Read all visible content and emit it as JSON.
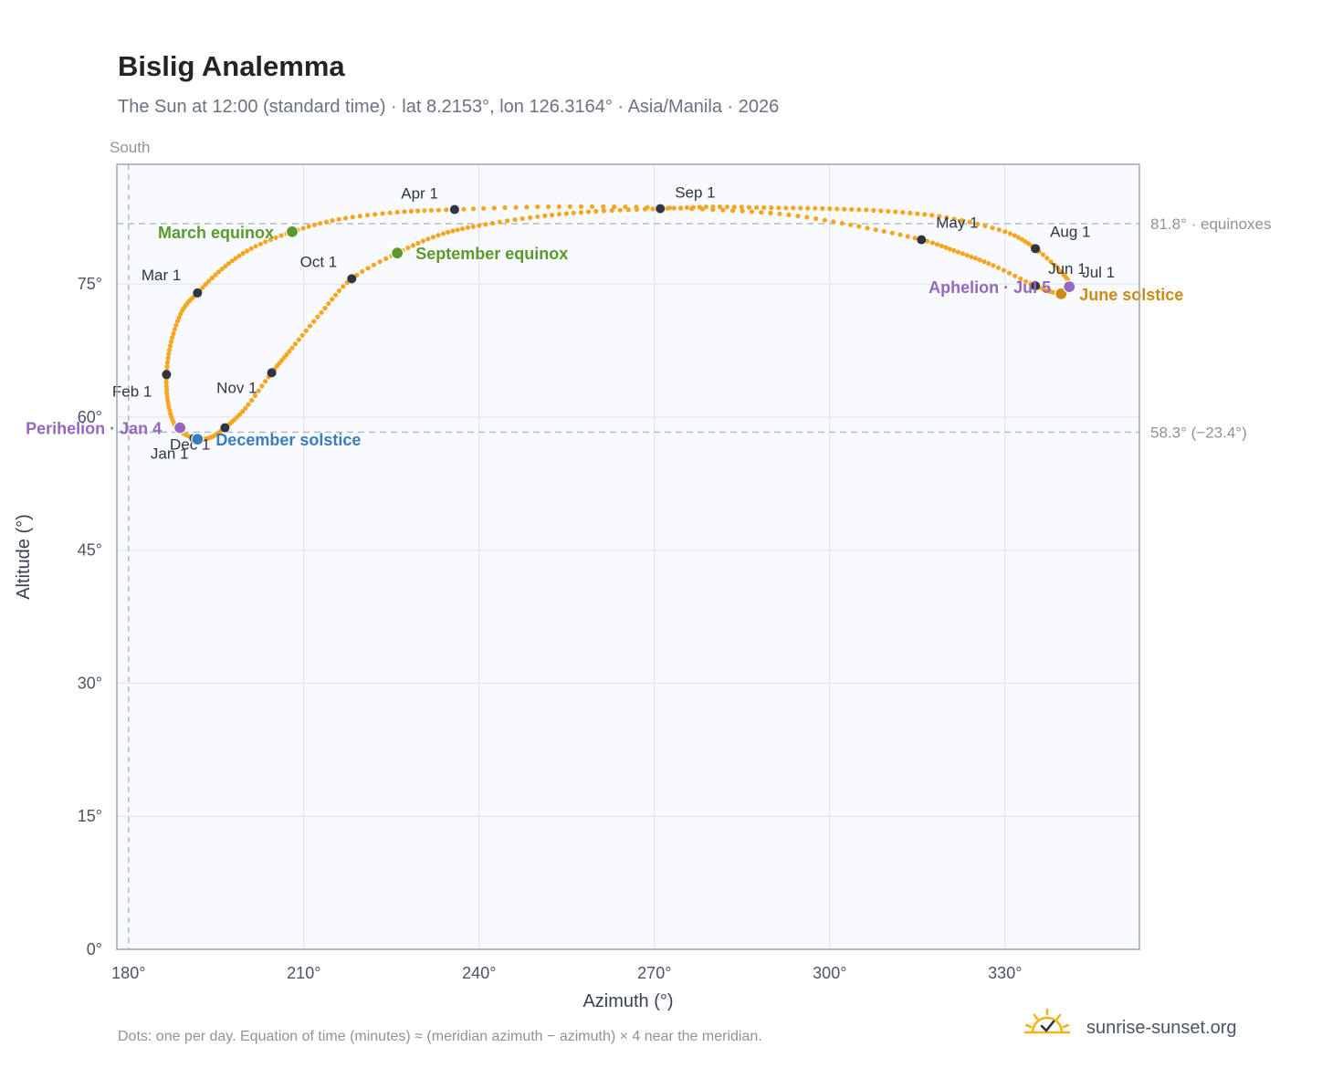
{
  "title": "Bislig Analemma",
  "subtitle": "The Sun at 12:00 (standard time) · lat 8.2153°, lon 126.3164° · Asia/Manila · 2026",
  "south_label": "South",
  "footnote": "Dots: one per day. Equation of time (minutes) ≈ (meridian azimuth − azimuth) × 4 near the meridian.",
  "brand": {
    "name": "sunrise-sunset.org",
    "icon": "sun-check-icon",
    "color": "#f2b418"
  },
  "colors": {
    "curve": "#f5a623",
    "month_point": "#2f3542",
    "march_equinox": "#5a9a2c",
    "september_equinox": "#5a9a2c",
    "june_solstice": "#cc8a16",
    "december_solstice": "#3a7cc0",
    "perihelion": "#9468bf",
    "aphelion": "#9468bf",
    "reference_line": "#aab6c1",
    "plot_background": "#f8fafd"
  },
  "chart_data": {
    "type": "scatter",
    "xlabel": "Azimuth (°)",
    "ylabel": "Altitude (°)",
    "xlim": [
      178,
      353
    ],
    "ylim": [
      0,
      88.5
    ],
    "xticks": [
      180,
      210,
      240,
      270,
      300,
      330
    ],
    "xtick_labels": [
      "180°",
      "210°",
      "240°",
      "270°",
      "300°",
      "330°"
    ],
    "yticks": [
      0,
      15,
      30,
      45,
      60,
      75
    ],
    "ytick_labels": [
      "0°",
      "15°",
      "30°",
      "45°",
      "60°",
      "75°"
    ],
    "grid": true,
    "meridian_azimuth": 180,
    "reference_lines": [
      {
        "altitude": 81.8,
        "label": "81.8° · equinoxes"
      },
      {
        "altitude": 58.3,
        "label": "58.3° (−23.4°)"
      }
    ],
    "series": [
      {
        "points": [
          [
            191.1,
            57.6
          ],
          [
            188.2,
            58.8
          ],
          [
            186.8,
            61.5
          ],
          [
            186.5,
            64.8
          ],
          [
            187.3,
            68.5
          ],
          [
            189.2,
            72.0
          ],
          [
            191.8,
            74.0
          ],
          [
            196.0,
            76.7
          ],
          [
            201.0,
            79.0
          ],
          [
            208.0,
            80.9
          ],
          [
            216.0,
            82.3
          ],
          [
            226.0,
            83.1
          ],
          [
            235.8,
            83.4
          ],
          [
            250.0,
            83.7
          ],
          [
            265.0,
            83.7
          ],
          [
            280.0,
            83.4
          ],
          [
            293.0,
            82.8
          ],
          [
            305.0,
            81.5
          ],
          [
            315.7,
            80.0
          ],
          [
            322.0,
            78.6
          ],
          [
            328.0,
            77.1
          ],
          [
            335.2,
            74.8
          ],
          [
            339.6,
            73.9
          ],
          [
            341.0,
            74.7
          ],
          [
            340.0,
            76.1
          ],
          [
            335.2,
            79.0
          ],
          [
            330.0,
            80.9
          ],
          [
            320.0,
            82.5
          ],
          [
            310.0,
            83.2
          ],
          [
            300.0,
            83.5
          ],
          [
            290.0,
            83.6
          ],
          [
            280.0,
            83.7
          ],
          [
            271.0,
            83.5
          ],
          [
            260.0,
            83.2
          ],
          [
            250.0,
            82.6
          ],
          [
            240.0,
            81.6
          ],
          [
            233.0,
            80.5
          ],
          [
            226.0,
            78.5
          ],
          [
            218.2,
            75.6
          ],
          [
            213.0,
            71.8
          ],
          [
            208.0,
            67.8
          ],
          [
            204.5,
            65.0
          ],
          [
            200.0,
            61.0
          ],
          [
            196.5,
            58.8
          ],
          [
            194.0,
            57.7
          ],
          [
            191.8,
            57.5
          ],
          [
            191.1,
            57.6
          ]
        ]
      }
    ],
    "month_markers": [
      {
        "label": "Jan 1",
        "azimuth": 191.2,
        "altitude": 57.6
      },
      {
        "label": "Feb 1",
        "azimuth": 186.5,
        "altitude": 64.8
      },
      {
        "label": "Mar 1",
        "azimuth": 191.8,
        "altitude": 74.0
      },
      {
        "label": "Apr 1",
        "azimuth": 235.8,
        "altitude": 83.4
      },
      {
        "label": "May 1",
        "azimuth": 315.7,
        "altitude": 80.0
      },
      {
        "label": "Jun 1",
        "azimuth": 335.2,
        "altitude": 74.8
      },
      {
        "label": "Jul 1",
        "azimuth": 341.0,
        "altitude": 74.7
      },
      {
        "label": "Aug 1",
        "azimuth": 335.2,
        "altitude": 79.0
      },
      {
        "label": "Sep 1",
        "azimuth": 271.0,
        "altitude": 83.5
      },
      {
        "label": "Oct 1",
        "azimuth": 218.2,
        "altitude": 75.6
      },
      {
        "label": "Nov 1",
        "azimuth": 204.5,
        "altitude": 65.0
      },
      {
        "label": "Dec 1",
        "azimuth": 196.5,
        "altitude": 58.8
      }
    ],
    "events": [
      {
        "label": "March equinox",
        "azimuth": 208.0,
        "altitude": 80.9,
        "color_key": "march_equinox"
      },
      {
        "label": "September equinox",
        "azimuth": 226.0,
        "altitude": 78.5,
        "color_key": "september_equinox"
      },
      {
        "label": "June solstice",
        "azimuth": 339.6,
        "altitude": 73.9,
        "color_key": "june_solstice"
      },
      {
        "label": "December solstice",
        "azimuth": 191.8,
        "altitude": 57.5,
        "color_key": "december_solstice"
      },
      {
        "label": "Perihelion · Jan 4",
        "azimuth": 188.8,
        "altitude": 58.8,
        "color_key": "perihelion"
      },
      {
        "label": "Aphelion · Jul 5",
        "azimuth": 341.0,
        "altitude": 74.7,
        "color_key": "aphelion"
      }
    ]
  }
}
